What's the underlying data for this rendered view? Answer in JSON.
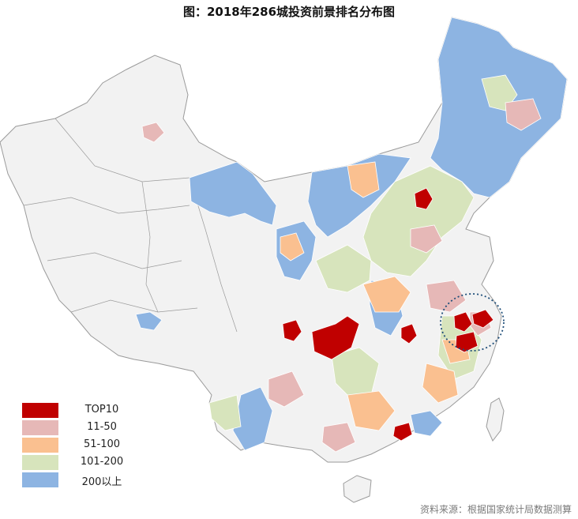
{
  "title": "图：2018年286城投资前景排名分布图",
  "legend": [
    {
      "label": "TOP10",
      "color": "#c00000"
    },
    {
      "label": "11-50",
      "color": "#e6b8b7"
    },
    {
      "label": "51-100",
      "color": "#fac090"
    },
    {
      "label": "101-200",
      "color": "#d7e4bc"
    },
    {
      "label": "200以上",
      "color": "#8db4e2"
    }
  ],
  "source": "资料来源：根据国家统计局数据测算",
  "colors": {
    "nodata": "#f2f2f2",
    "border": "#9a9a9a",
    "highlight_circle": "#1f4e79"
  }
}
